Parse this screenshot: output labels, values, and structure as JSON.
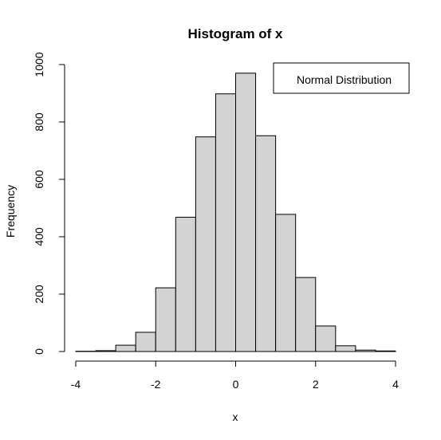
{
  "chart_data": {
    "type": "bar",
    "title": "Histogram of x",
    "xlabel": "x",
    "ylabel": "Frequency",
    "bin_edges": [
      -4,
      -3.5,
      -3,
      -2.5,
      -2,
      -1.5,
      -1,
      -0.5,
      0,
      0.5,
      1,
      1.5,
      2,
      2.5,
      3,
      3.5,
      4
    ],
    "values": [
      1,
      3,
      22,
      67,
      222,
      468,
      748,
      898,
      970,
      752,
      478,
      258,
      89,
      20,
      5,
      2
    ],
    "xlim": [
      -4,
      4
    ],
    "ylim": [
      0,
      1000
    ],
    "x_ticks": [
      "-4",
      "-2",
      "0",
      "2",
      "4"
    ],
    "y_ticks": [
      "0",
      "200",
      "400",
      "600",
      "800",
      "1000"
    ],
    "legend": {
      "entries": [
        "Normal Distribution"
      ],
      "position": "top-right"
    },
    "bar_fill": "#d3d3d3",
    "bar_stroke": "#000000",
    "grid": false
  }
}
